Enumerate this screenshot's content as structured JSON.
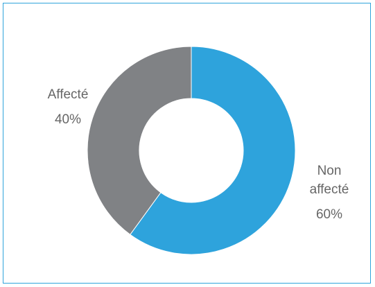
{
  "chart_data": {
    "type": "pie",
    "donut": true,
    "slices": [
      {
        "label": [
          "Non",
          "affecté"
        ],
        "value_label": "60%",
        "value": 60,
        "color": "#2ea3dc"
      },
      {
        "label": [
          "Affecté"
        ],
        "value_label": "40%",
        "value": 40,
        "color": "#808285"
      }
    ],
    "start_angle": "top",
    "direction": "clockwise",
    "legend": "none",
    "data_labels": "outside"
  }
}
